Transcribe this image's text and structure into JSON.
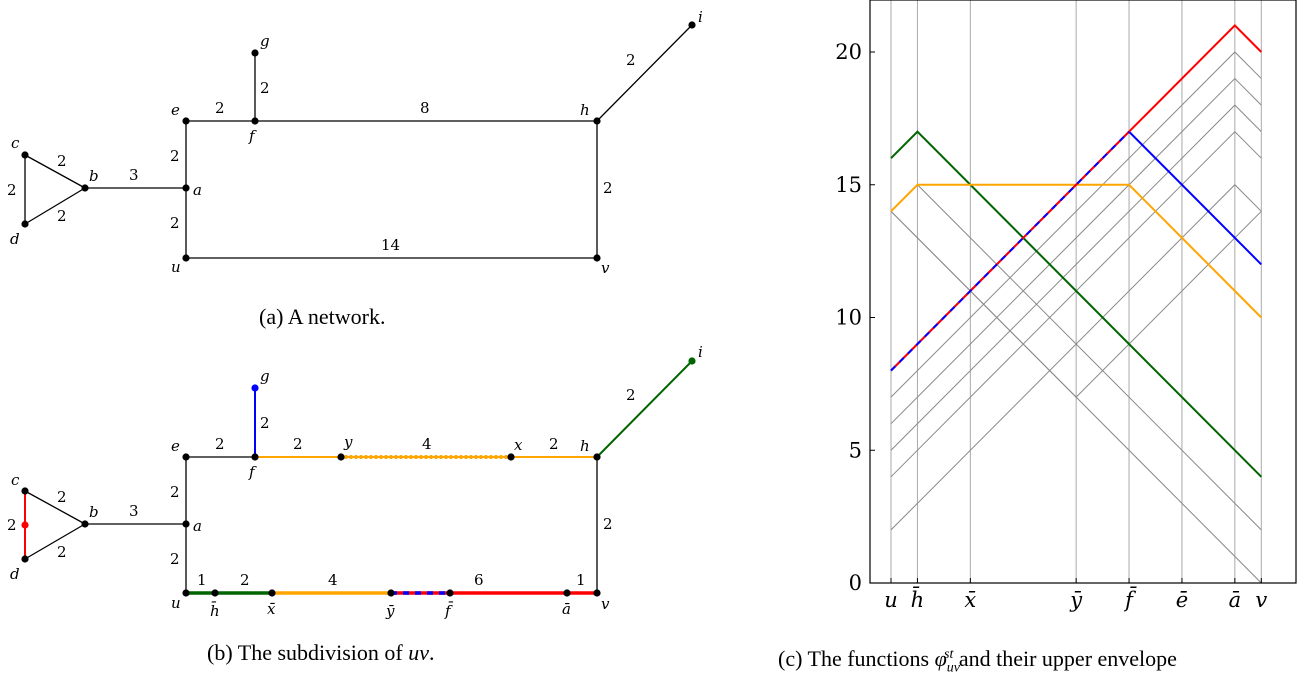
{
  "colors": {
    "red": "#ff0000",
    "blue": "#0000ff",
    "green": "#006400",
    "orange": "#ffa500",
    "black": "#000000",
    "gray": "#888888"
  },
  "captions": {
    "a": "(a) A network.",
    "b": "(b) The subdivision of uv.",
    "c": "(c) The functions φ_uv^st and their upper envelope"
  },
  "network_a": {
    "nodes": {
      "c": "c",
      "d": "d",
      "b": "b",
      "a": "a",
      "u": "u",
      "e": "e",
      "f": "f",
      "g": "g",
      "h": "h",
      "i": "i",
      "v": "v"
    },
    "edges": {
      "cb": "2",
      "cd": "2",
      "db": "2",
      "ba": "3",
      "ea": "2",
      "au": "2",
      "ef": "2",
      "fg": "2",
      "fh": "8",
      "hi": "2",
      "hv": "2",
      "uv": "14"
    }
  },
  "network_b": {
    "nodes": {
      "c": "c",
      "d": "d",
      "b": "b",
      "a": "a",
      "u": "u",
      "e": "e",
      "f": "f",
      "g": "g",
      "h": "h",
      "i": "i",
      "v": "v",
      "y": "y",
      "x": "x",
      "hbar": "h̄",
      "xbar": "x̄",
      "ybar": "ȳ",
      "fbar": "f̄",
      "abar": "ā"
    },
    "edges": {
      "cb": "2",
      "cd": "2",
      "db": "2",
      "ba": "3",
      "ea": "2",
      "au": "2",
      "ef": "2",
      "fg": "2",
      "fy": "2",
      "yx": "4",
      "xh": "2",
      "hi": "2",
      "hv": "2",
      "u_hbar": "1",
      "hbar_xbar": "2",
      "xbar_ybar": "4",
      "fbar_abar": "6",
      "abar_v": "1"
    }
  },
  "chart_data": {
    "type": "line",
    "x_ticks": [
      "u",
      "h̄",
      "x̄",
      "ȳ",
      "f̄",
      "ē",
      "ā",
      "v"
    ],
    "x_positions": [
      0,
      1,
      3,
      7,
      9,
      11,
      13,
      14
    ],
    "y_ticks": [
      "0",
      "5",
      "10",
      "15",
      "20"
    ],
    "ylim": [
      0,
      22
    ],
    "xlim": [
      -0.8,
      15.3
    ],
    "grid": "vertical lines at x ticks",
    "series": [
      {
        "color": "green",
        "x": [
          0,
          1,
          14
        ],
        "y": [
          16,
          17,
          4
        ]
      },
      {
        "color": "orange",
        "x": [
          0,
          1,
          9,
          14
        ],
        "y": [
          14,
          15,
          15,
          10
        ]
      },
      {
        "color": "blue",
        "x": [
          0,
          9,
          14
        ],
        "y": [
          8,
          17,
          12
        ]
      },
      {
        "color": "red",
        "x": [
          0,
          13,
          14
        ],
        "y": [
          8,
          21,
          20
        ]
      }
    ],
    "background_lines": [
      {
        "x": [
          0,
          13,
          14
        ],
        "y": [
          7,
          20,
          19
        ]
      },
      {
        "x": [
          0,
          13,
          14
        ],
        "y": [
          6,
          19,
          18
        ]
      },
      {
        "x": [
          0,
          13,
          14
        ],
        "y": [
          5,
          18,
          17
        ]
      },
      {
        "x": [
          0,
          13,
          14
        ],
        "y": [
          4,
          17,
          16
        ]
      },
      {
        "x": [
          0,
          13,
          14
        ],
        "y": [
          2,
          15,
          14
        ]
      },
      {
        "x": [
          0,
          14
        ],
        "y": [
          14,
          0
        ]
      },
      {
        "x": [
          0,
          1,
          14
        ],
        "y": [
          14,
          15,
          2
        ]
      },
      {
        "x": [
          0,
          7,
          14
        ],
        "y": [
          14,
          7,
          14
        ]
      }
    ]
  }
}
